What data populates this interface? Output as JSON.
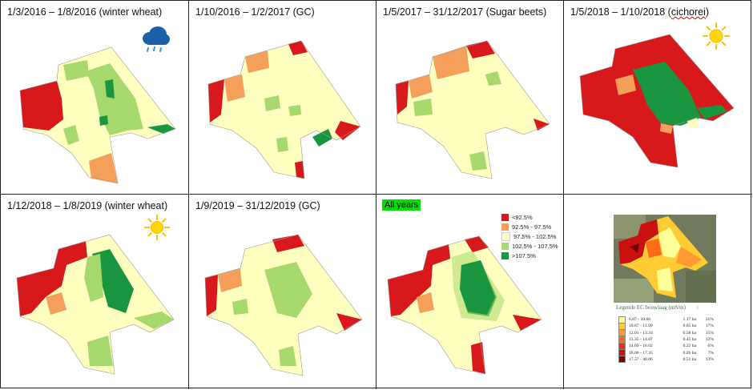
{
  "panels": [
    {
      "title": "1/3/2016 – 1/8/2016 (winter wheat)",
      "weather": "rain-cloud-icon"
    },
    {
      "title": "1/10/2016 – 1/2/2017 (GC)"
    },
    {
      "title": "1/5/2017 – 31/12/2017 (Sugar beets)"
    },
    {
      "title_prefix": "1/5/2018 – 1/10/2018 (",
      "title_word": "cichorei",
      "title_suffix": ")",
      "weather": "sun-icon"
    },
    {
      "title": "1/12/2018 – 1/8/2019 (winter wheat)",
      "weather": "sun-icon"
    },
    {
      "title": "1/9/2019 – 31/12/2019 (GC)"
    },
    {
      "badge": "All years"
    },
    {}
  ],
  "legend": {
    "items": [
      {
        "label": "<92.5%",
        "color": "#d7191c"
      },
      {
        "label": "92.5% - 97.5%",
        "color": "#f5a05a"
      },
      {
        "label": "97.5% - 102.5%",
        "color": "#ffffc0"
      },
      {
        "label": "102.5% - 107.5%",
        "color": "#a6d86e"
      },
      {
        "label": ">107.5%",
        "color": "#1a9641"
      }
    ]
  },
  "ec_legend": {
    "title": "Legende EC bouwlaag (mS/m)",
    "extra": "i",
    "rows": [
      {
        "range": "6.87 - 10.66",
        "ha": "1.17 ha",
        "pct": "31%",
        "color": "#ffff99"
      },
      {
        "range": "10.67 - 11.99",
        "ha": "0.65 ha",
        "pct": "17%",
        "color": "#ffcc33"
      },
      {
        "range": "12.01 - 13.34",
        "ha": "0.58 ha",
        "pct": "15%",
        "color": "#ff9933"
      },
      {
        "range": "13.35 - 14.67",
        "ha": "0.45 ha",
        "pct": "12%",
        "color": "#ff6a1a"
      },
      {
        "range": "14.69 - 16.02",
        "ha": "0.22 ha",
        "pct": "6%",
        "color": "#f03010"
      },
      {
        "range": "16.06 - 17.35",
        "ha": "0.26 ha",
        "pct": "7%",
        "color": "#c81010"
      },
      {
        "range": "17.37 - 40.06",
        "ha": "0.51 ha",
        "pct": "13%",
        "color": "#7a0000"
      }
    ]
  }
}
